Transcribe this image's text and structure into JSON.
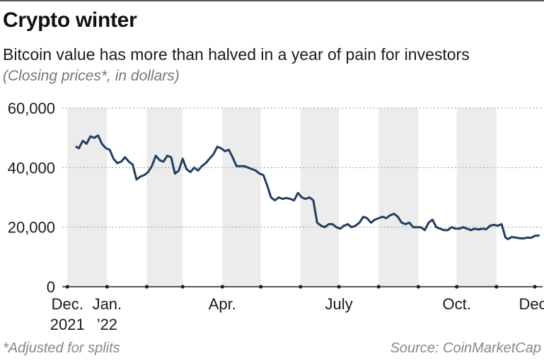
{
  "header": {
    "title": "Crypto winter",
    "subtitle": "Bitcoin value has more than halved in a year of pain for investors",
    "unit_note": "(Closing prices*, in dollars)"
  },
  "footer": {
    "footnote": "*Adjusted for splits",
    "source": "Source: CoinMarketCap"
  },
  "colors": {
    "line": "#1f3f63",
    "band": "#ececec",
    "grid": "#9a9a9a",
    "axis": "#222222"
  },
  "chart_data": {
    "type": "line",
    "title": "Crypto winter",
    "subtitle": "Bitcoin value has more than halved in a year of pain for investors",
    "ylabel": "(Closing prices*, in dollars)",
    "ylim": [
      0,
      60000
    ],
    "xlim": [
      "2021-11-27",
      "2022-12-07"
    ],
    "y_ticks": [
      {
        "value": 0,
        "label": "0"
      },
      {
        "value": 20000,
        "label": "20,000"
      },
      {
        "value": 40000,
        "label": "40,000"
      },
      {
        "value": 60000,
        "label": "60,000"
      }
    ],
    "x_ticks": [
      {
        "date": "2021-12-01",
        "line1": "Dec.",
        "line2": "2021"
      },
      {
        "date": "2022-01-01",
        "line1": "Jan.",
        "line2": "’22"
      },
      {
        "date": "2022-04-01",
        "line1": "Apr.",
        "line2": ""
      },
      {
        "date": "2022-07-01",
        "line1": "July",
        "line2": ""
      },
      {
        "date": "2022-10-01",
        "line1": "Oct.",
        "line2": ""
      },
      {
        "date": "2022-12-01",
        "line1": "Dec.",
        "line2": ""
      }
    ],
    "grid": true,
    "series": [
      {
        "x": [
          "2021-12-08",
          "2021-12-10",
          "2021-12-13",
          "2021-12-16",
          "2021-12-19",
          "2021-12-22",
          "2021-12-25",
          "2021-12-28",
          "2021-12-31",
          "2022-01-03",
          "2022-01-06",
          "2022-01-09",
          "2022-01-12",
          "2022-01-15",
          "2022-01-18",
          "2022-01-21",
          "2022-01-24",
          "2022-01-27",
          "2022-01-30",
          "2022-02-02",
          "2022-02-05",
          "2022-02-08",
          "2022-02-11",
          "2022-02-14",
          "2022-02-17",
          "2022-02-20",
          "2022-02-23",
          "2022-02-26",
          "2022-03-01",
          "2022-03-04",
          "2022-03-07",
          "2022-03-10",
          "2022-03-13",
          "2022-03-16",
          "2022-03-19",
          "2022-03-22",
          "2022-03-25",
          "2022-03-28",
          "2022-03-31",
          "2022-04-03",
          "2022-04-06",
          "2022-04-09",
          "2022-04-12",
          "2022-04-15",
          "2022-04-18",
          "2022-04-21",
          "2022-04-24",
          "2022-04-27",
          "2022-04-30",
          "2022-05-03",
          "2022-05-06",
          "2022-05-09",
          "2022-05-12",
          "2022-05-15",
          "2022-05-18",
          "2022-05-21",
          "2022-05-24",
          "2022-05-27",
          "2022-05-30",
          "2022-06-02",
          "2022-06-05",
          "2022-06-08",
          "2022-06-11",
          "2022-06-14",
          "2022-06-17",
          "2022-06-20",
          "2022-06-23",
          "2022-06-26",
          "2022-06-29",
          "2022-07-02",
          "2022-07-05",
          "2022-07-08",
          "2022-07-11",
          "2022-07-14",
          "2022-07-17",
          "2022-07-20",
          "2022-07-23",
          "2022-07-26",
          "2022-07-29",
          "2022-08-01",
          "2022-08-04",
          "2022-08-07",
          "2022-08-10",
          "2022-08-13",
          "2022-08-16",
          "2022-08-19",
          "2022-08-22",
          "2022-08-25",
          "2022-08-28",
          "2022-08-31",
          "2022-09-03",
          "2022-09-06",
          "2022-09-09",
          "2022-09-12",
          "2022-09-15",
          "2022-09-18",
          "2022-09-21",
          "2022-09-24",
          "2022-09-27",
          "2022-09-30",
          "2022-10-03",
          "2022-10-06",
          "2022-10-09",
          "2022-10-12",
          "2022-10-15",
          "2022-10-18",
          "2022-10-21",
          "2022-10-24",
          "2022-10-27",
          "2022-10-30",
          "2022-11-02",
          "2022-11-05",
          "2022-11-08",
          "2022-11-10",
          "2022-11-13",
          "2022-11-16",
          "2022-11-19",
          "2022-11-22",
          "2022-11-25",
          "2022-11-28",
          "2022-12-01",
          "2022-12-04"
        ],
        "y": [
          47000,
          46500,
          49000,
          48000,
          50500,
          50000,
          50800,
          48000,
          46500,
          46000,
          43000,
          41500,
          42000,
          43500,
          42000,
          41000,
          36000,
          37000,
          37500,
          38500,
          40500,
          44000,
          42500,
          42000,
          44000,
          43500,
          38000,
          39000,
          43000,
          39500,
          38500,
          40000,
          39000,
          40500,
          41500,
          43000,
          44500,
          47000,
          46500,
          45500,
          46000,
          43500,
          40500,
          40500,
          40500,
          40000,
          39500,
          39000,
          38000,
          37500,
          34000,
          30000,
          29000,
          30000,
          29500,
          29800,
          29500,
          29000,
          31500,
          30000,
          29500,
          30000,
          29000,
          21500,
          20500,
          20000,
          21000,
          21000,
          20000,
          19500,
          20500,
          21000,
          20000,
          20500,
          21500,
          23500,
          23000,
          21500,
          22500,
          23000,
          23500,
          23000,
          24000,
          24500,
          23500,
          21500,
          21000,
          21500,
          20000,
          20000,
          20000,
          19000,
          21500,
          22500,
          20000,
          19500,
          19000,
          19000,
          20000,
          19500,
          19500,
          20000,
          19500,
          19000,
          19500,
          19200,
          19500,
          19300,
          20500,
          20800,
          20500,
          21000,
          16500,
          16000,
          16700,
          16500,
          16300,
          16200,
          16500,
          16400,
          17100,
          17200
        ]
      }
    ]
  }
}
